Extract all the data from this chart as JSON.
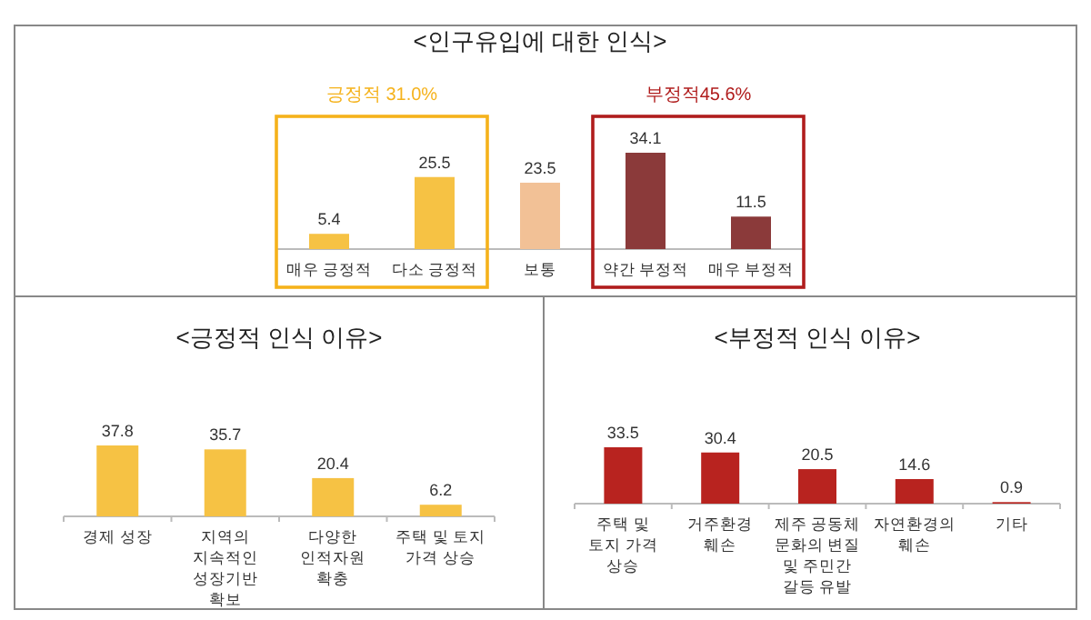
{
  "chart_data": [
    {
      "type": "bar",
      "title": "<인구유입에 대한 인식>",
      "categories": [
        "매우 긍정적",
        "다소 긍정적",
        "보통",
        "약간 부정적",
        "매우 부정적"
      ],
      "values": [
        5.4,
        25.5,
        23.5,
        34.1,
        11.5
      ],
      "colors": [
        "#f6c244",
        "#f6c244",
        "#f2c196",
        "#8b3a3a",
        "#8b3a3a"
      ],
      "data_labels": true,
      "annotations": [
        "긍정적 31.0%",
        "부정적45.6%"
      ]
    },
    {
      "type": "bar",
      "title": "<긍정적 인식 이유>",
      "categories": [
        "경제 성장",
        "지역의 지속적인 성장기반 확보",
        "다양한 인적자원 확충",
        "주택 및 토지 가격 상승"
      ],
      "values": [
        37.8,
        35.7,
        20.4,
        6.2
      ],
      "color": "#f6c244",
      "data_labels": true
    },
    {
      "type": "bar",
      "title": "<부정적 인식 이유>",
      "categories": [
        "주택 및 토지 가격 상승",
        "거주환경 훼손",
        "제주 공동체 문화의 변질 및 주민간 갈등 유발",
        "자연환경의 훼손",
        "기타"
      ],
      "values": [
        33.5,
        30.4,
        20.5,
        14.6,
        0.9
      ],
      "color": "#b8231f",
      "data_labels": true
    }
  ]
}
